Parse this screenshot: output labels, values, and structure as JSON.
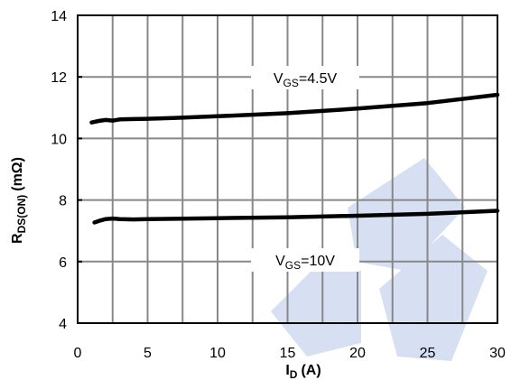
{
  "chart_data": {
    "type": "line",
    "xlim": [
      0,
      30
    ],
    "ylim": [
      4,
      14
    ],
    "x_ticks": [
      0,
      5,
      10,
      15,
      20,
      25,
      30
    ],
    "y_ticks": [
      4,
      6,
      8,
      10,
      12,
      14
    ],
    "x_grid_step": 2.5,
    "grid": true,
    "xlabel": {
      "main": "I",
      "sub": "D",
      "unit": "(A)"
    },
    "ylabel": {
      "main": "R",
      "sub": "DS(ON)",
      "unit": "(mΩ)"
    },
    "series": [
      {
        "label": {
          "main": "V",
          "sub": "GS",
          "value": "=4.5V"
        },
        "x": [
          1,
          1.5,
          2,
          2.5,
          3,
          4,
          5,
          7,
          10,
          15,
          20,
          25,
          30
        ],
        "y": [
          10.52,
          10.57,
          10.6,
          10.58,
          10.62,
          10.63,
          10.64,
          10.67,
          10.72,
          10.82,
          10.97,
          11.15,
          11.42
        ]
      },
      {
        "label": {
          "main": "V",
          "sub": "GS",
          "value": "=10V"
        },
        "x": [
          1.2,
          1.6,
          2,
          2.5,
          3,
          4,
          5,
          7,
          10,
          15,
          20,
          25,
          30
        ],
        "y": [
          7.27,
          7.33,
          7.38,
          7.4,
          7.38,
          7.37,
          7.38,
          7.39,
          7.41,
          7.44,
          7.49,
          7.55,
          7.65
        ]
      }
    ]
  }
}
